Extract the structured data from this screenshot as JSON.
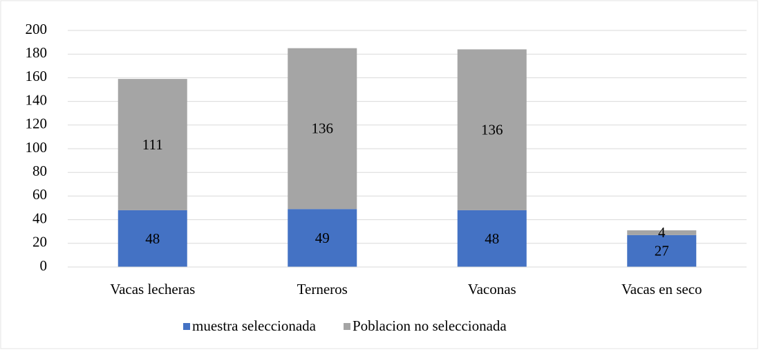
{
  "chart_data": {
    "type": "stacked_bar",
    "categories": [
      "Vacas lecheras",
      "Terneros",
      "Vaconas",
      "Vacas en seco"
    ],
    "series": [
      {
        "name": "muestra seleccionada",
        "color": "#4472c4",
        "values": [
          48,
          49,
          48,
          27
        ]
      },
      {
        "name": "Poblacion no seleccionada",
        "color": "#a5a5a5",
        "values": [
          111,
          136,
          136,
          4
        ]
      }
    ],
    "ylim": [
      0,
      200
    ],
    "yticks": [
      0,
      20,
      40,
      60,
      80,
      100,
      120,
      140,
      160,
      180,
      200
    ],
    "grid": true,
    "legend": "bottom"
  }
}
